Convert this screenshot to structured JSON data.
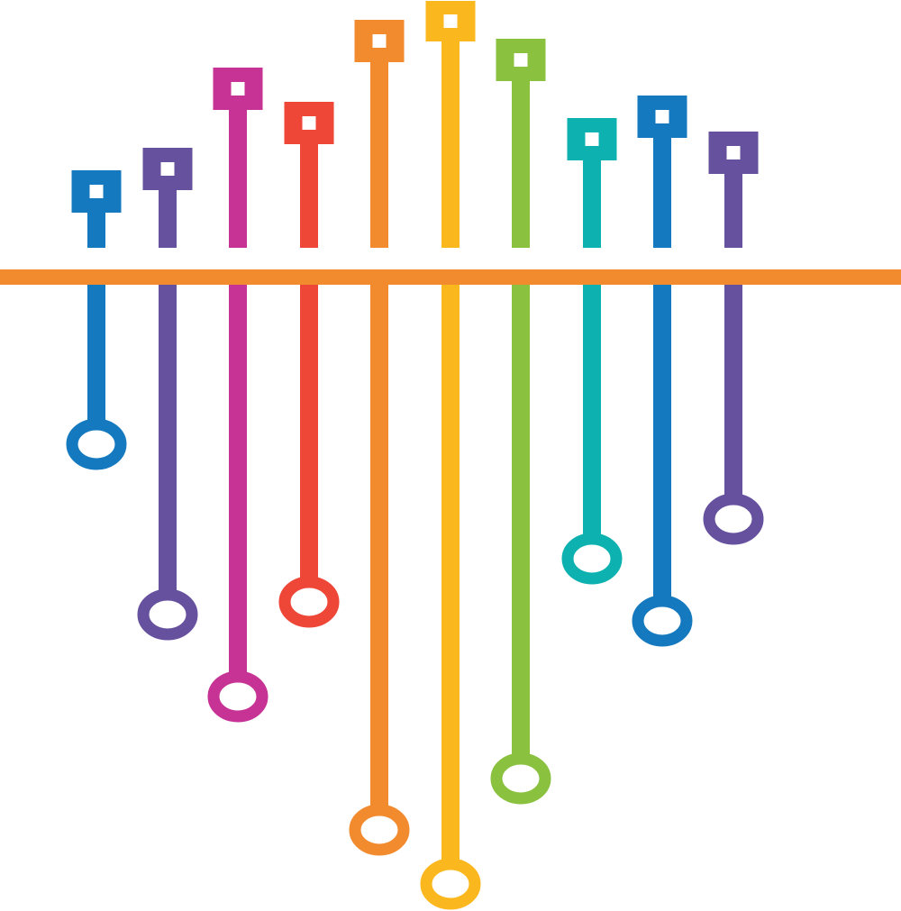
{
  "graphic": {
    "background": "#ffffff",
    "bus_color": "#F28A2E",
    "pins": [
      {
        "color": "#1479BE",
        "top_marker": "square-pad",
        "bottom_marker": "ring-pad"
      },
      {
        "color": "#66519E",
        "top_marker": "square-pad",
        "bottom_marker": "ring-pad"
      },
      {
        "color": "#C63394",
        "top_marker": "square-pad",
        "bottom_marker": "ring-pad"
      },
      {
        "color": "#EE4637",
        "top_marker": "square-pad",
        "bottom_marker": "ring-pad"
      },
      {
        "color": "#F28A2E",
        "top_marker": "square-pad",
        "bottom_marker": "ring-pad"
      },
      {
        "color": "#FBB81E",
        "top_marker": "square-pad",
        "bottom_marker": "ring-pad"
      },
      {
        "color": "#8AC13F",
        "top_marker": "square-pad",
        "bottom_marker": "ring-pad"
      },
      {
        "color": "#0DB2B0",
        "top_marker": "square-pad",
        "bottom_marker": "ring-pad"
      },
      {
        "color": "#1479BE",
        "top_marker": "square-pad",
        "bottom_marker": "ring-pad"
      },
      {
        "color": "#66519E",
        "top_marker": "square-pad",
        "bottom_marker": "ring-pad"
      }
    ]
  }
}
